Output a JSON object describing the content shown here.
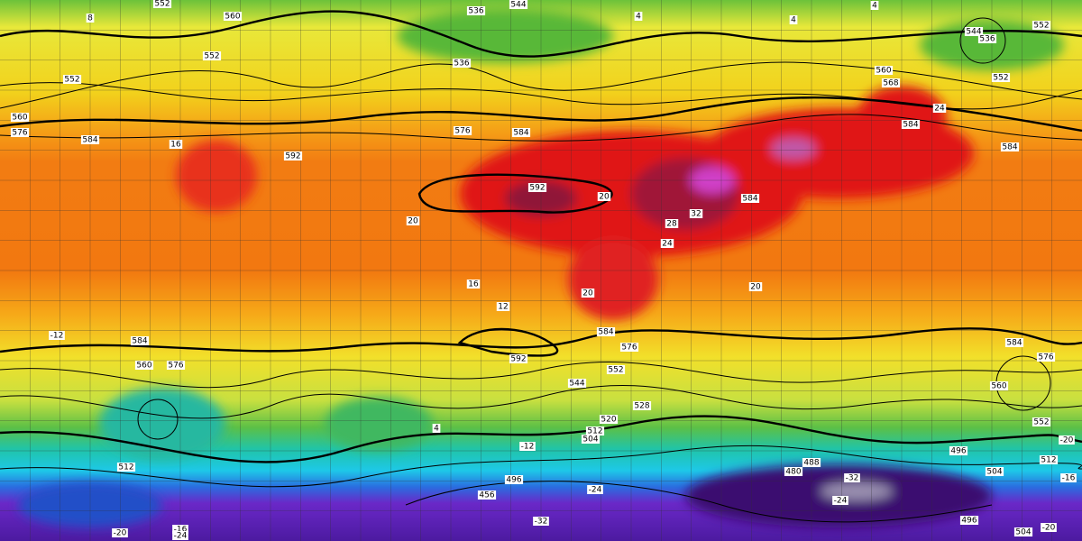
{
  "map": {
    "height_contour_labels": [
      552,
      560,
      536,
      544,
      552,
      552,
      536,
      560,
      576,
      584,
      592,
      576,
      584,
      544,
      536,
      552,
      552,
      560,
      568,
      584,
      584,
      592,
      584,
      584,
      576,
      592,
      552,
      584,
      576,
      560,
      584,
      576,
      560,
      544,
      528,
      520,
      512,
      504,
      552,
      512,
      512,
      504,
      496,
      488,
      480,
      496,
      456,
      496,
      504
    ],
    "temperature_labels": [
      8,
      4,
      4,
      4,
      16,
      20,
      20,
      16,
      12,
      20,
      24,
      32,
      28,
      24,
      20,
      -12,
      -12,
      4,
      -32,
      -24,
      -24,
      -32,
      -20,
      -16,
      -24,
      -16,
      -20,
      -20
    ]
  }
}
